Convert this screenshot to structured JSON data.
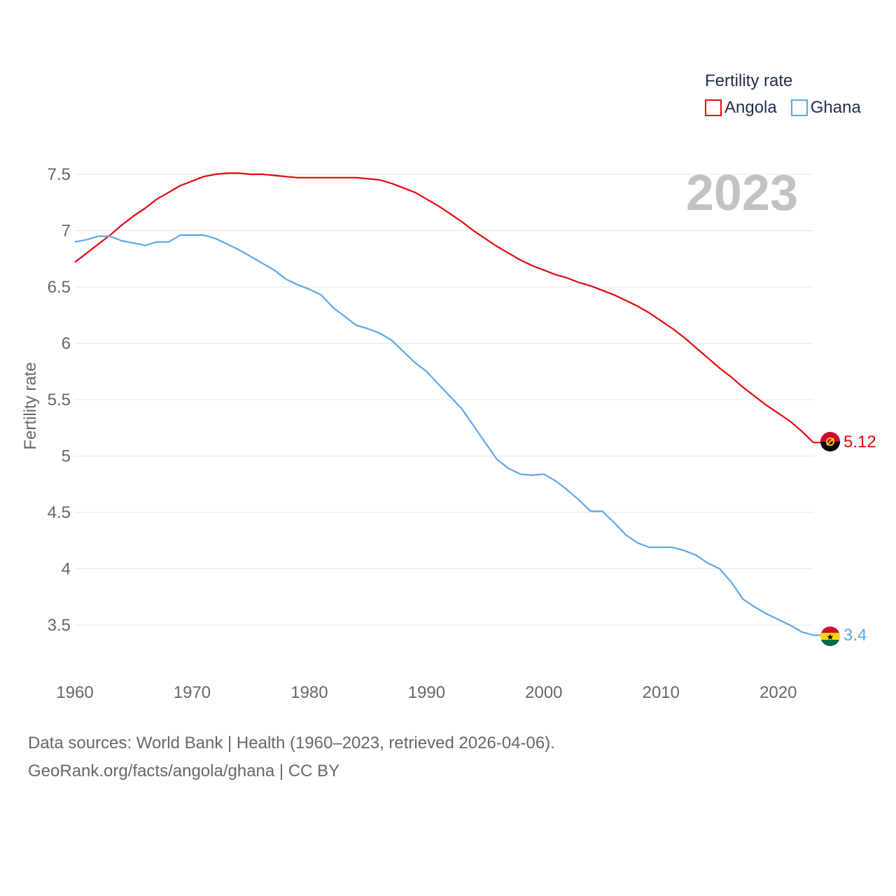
{
  "legend": {
    "title": "Fertility rate",
    "items": [
      {
        "label": "Angola",
        "color": "#e8060a"
      },
      {
        "label": "Ghana",
        "color": "#5ba7e8"
      }
    ]
  },
  "year_label": "2023",
  "footer": {
    "sources": "Data sources: World Bank | Health (1960–2023, retrieved 2026-04-06).",
    "link": "GeoRank.org/facts/angola/ghana",
    "license": " | CC BY"
  },
  "chart_data": {
    "type": "line",
    "title": "Fertility rate",
    "xlabel": "",
    "ylabel": "Fertility rate",
    "xlim": [
      1960,
      2023
    ],
    "ylim": [
      3.5,
      7.5
    ],
    "x_ticks": [
      1960,
      1970,
      1980,
      1990,
      2000,
      2010,
      2020
    ],
    "y_ticks": [
      3.5,
      4,
      4.5,
      5,
      5.5,
      6,
      6.5,
      7,
      7.5
    ],
    "y_tick_labels": [
      "3.5",
      "4",
      "4.5",
      "5",
      "5.5",
      "6",
      "6.5",
      "7",
      "7.5"
    ],
    "grid": true,
    "series": [
      {
        "name": "Angola",
        "color": "#e8060a",
        "end_label": "5.12",
        "x": [
          1960,
          1961,
          1962,
          1963,
          1964,
          1965,
          1966,
          1967,
          1968,
          1969,
          1970,
          1971,
          1972,
          1973,
          1974,
          1975,
          1976,
          1977,
          1978,
          1979,
          1980,
          1981,
          1982,
          1983,
          1984,
          1985,
          1986,
          1987,
          1988,
          1989,
          1990,
          1991,
          1992,
          1993,
          1994,
          1995,
          1996,
          1997,
          1998,
          1999,
          2000,
          2001,
          2002,
          2003,
          2004,
          2005,
          2006,
          2007,
          2008,
          2009,
          2010,
          2011,
          2012,
          2013,
          2014,
          2015,
          2016,
          2017,
          2018,
          2019,
          2020,
          2021,
          2022,
          2023
        ],
        "y": [
          6.72,
          6.8,
          6.88,
          6.96,
          7.05,
          7.13,
          7.2,
          7.28,
          7.34,
          7.4,
          7.44,
          7.48,
          7.5,
          7.51,
          7.51,
          7.5,
          7.5,
          7.49,
          7.48,
          7.47,
          7.47,
          7.47,
          7.47,
          7.47,
          7.47,
          7.46,
          7.45,
          7.42,
          7.38,
          7.34,
          7.28,
          7.22,
          7.15,
          7.08,
          7.0,
          6.93,
          6.86,
          6.8,
          6.74,
          6.69,
          6.65,
          6.61,
          6.58,
          6.54,
          6.51,
          6.47,
          6.43,
          6.38,
          6.33,
          6.27,
          6.2,
          6.13,
          6.05,
          5.96,
          5.87,
          5.78,
          5.7,
          5.61,
          5.53,
          5.45,
          5.38,
          5.31,
          5.22,
          5.12
        ]
      },
      {
        "name": "Ghana",
        "color": "#5ba7e8",
        "end_label": "3.4",
        "x": [
          1960,
          1961,
          1962,
          1963,
          1964,
          1965,
          1966,
          1967,
          1968,
          1969,
          1970,
          1971,
          1972,
          1973,
          1974,
          1975,
          1976,
          1977,
          1978,
          1979,
          1980,
          1981,
          1982,
          1983,
          1984,
          1985,
          1986,
          1987,
          1988,
          1989,
          1990,
          1991,
          1992,
          1993,
          1994,
          1995,
          1996,
          1997,
          1998,
          1999,
          2000,
          2001,
          2002,
          2003,
          2004,
          2005,
          2006,
          2007,
          2008,
          2009,
          2010,
          2011,
          2012,
          2013,
          2014,
          2015,
          2016,
          2017,
          2018,
          2019,
          2020,
          2021,
          2022,
          2023
        ],
        "y": [
          6.9,
          6.92,
          6.95,
          6.95,
          6.91,
          6.89,
          6.87,
          6.9,
          6.9,
          6.96,
          6.96,
          6.96,
          6.93,
          6.88,
          6.83,
          6.77,
          6.71,
          6.65,
          6.57,
          6.52,
          6.48,
          6.43,
          6.32,
          6.24,
          6.16,
          6.13,
          6.09,
          6.03,
          5.93,
          5.83,
          5.75,
          5.64,
          5.53,
          5.42,
          5.27,
          5.12,
          4.97,
          4.89,
          4.84,
          4.83,
          4.84,
          4.78,
          4.7,
          4.61,
          4.51,
          4.51,
          4.41,
          4.3,
          4.23,
          4.19,
          4.19,
          4.19,
          4.16,
          4.12,
          4.05,
          4.0,
          3.88,
          3.73,
          3.66,
          3.6,
          3.55,
          3.5,
          3.44,
          3.41
        ]
      }
    ]
  }
}
